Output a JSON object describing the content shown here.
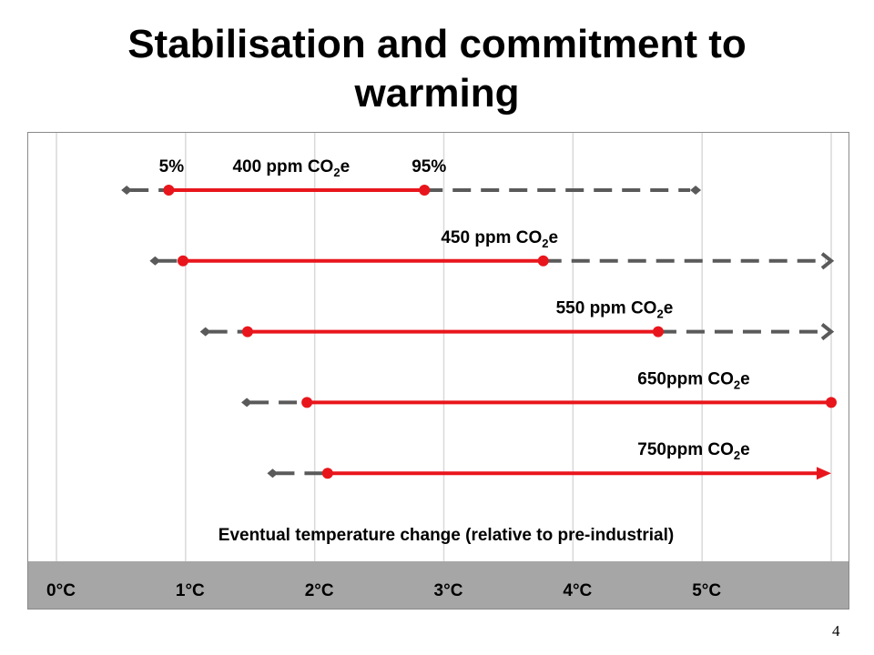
{
  "title_lines": [
    "Stabilisation and commitment to",
    "warming"
  ],
  "page_number": "4",
  "colors": {
    "likely_range": "#e8161c",
    "extended_range": "#5a5a5a",
    "grid": "#d9d9d9",
    "axis_band": "#a6a6a6"
  },
  "chart_data": {
    "type": "range",
    "xlabel": "Eventual temperature change (relative to pre-industrial)",
    "tick_labels": [
      "0°C",
      "1°C",
      "2°C",
      "3°C",
      "4°C",
      "5°C"
    ],
    "xlim": [
      0,
      6
    ],
    "grid": true,
    "percentile_labels": {
      "low": "5%",
      "high": "95%"
    },
    "series": [
      {
        "label": "400 ppm CO",
        "sub": "2",
        "suffix": "e",
        "likely": [
          0.87,
          2.85
        ],
        "extended": [
          0.53,
          4.95
        ],
        "ext_end": "diamond",
        "likely_end": "dot"
      },
      {
        "label": "450 ppm CO",
        "sub": "2",
        "suffix": "e",
        "likely": [
          0.98,
          3.77
        ],
        "extended": [
          0.75,
          6
        ],
        "ext_end": "arrow",
        "likely_end": "dot"
      },
      {
        "label": "550 ppm CO",
        "sub": "2",
        "suffix": "e",
        "likely": [
          1.48,
          4.66
        ],
        "extended": [
          1.14,
          6
        ],
        "ext_end": "arrow",
        "likely_end": "dot"
      },
      {
        "label": "650ppm CO",
        "sub": "2",
        "suffix": "e",
        "likely": [
          1.94,
          6
        ],
        "extended": [
          1.46,
          6
        ],
        "ext_end": "none",
        "likely_end": "dot"
      },
      {
        "label": "750ppm CO",
        "sub": "2",
        "suffix": "e",
        "likely": [
          2.1,
          6
        ],
        "extended": [
          1.66,
          6
        ],
        "ext_end": "none",
        "likely_end": "arrow"
      }
    ]
  }
}
